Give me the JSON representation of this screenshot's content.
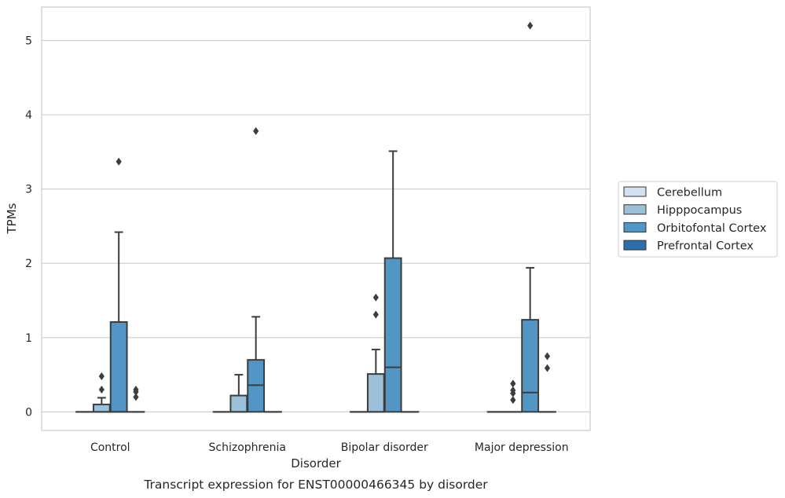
{
  "chart_data": {
    "type": "box",
    "title": "",
    "caption": "Transcript expression for ENST00000466345 by disorder",
    "xlabel": "Disorder",
    "ylabel": "TPMs",
    "ylim": [
      -0.25,
      5.45
    ],
    "yticks": [
      0,
      1,
      2,
      3,
      4,
      5
    ],
    "grid": "horizontal",
    "legend_position": "right",
    "categories": [
      "Control",
      "Schizophrenia",
      "Bipolar disorder",
      "Major depression"
    ],
    "series": [
      {
        "name": "Cerebellum",
        "color": "#d0e1f2",
        "boxes": [
          {
            "category": "Control",
            "whislo": 0,
            "q1": 0,
            "med": 0,
            "q3": 0,
            "whishi": 0,
            "fliers": []
          },
          {
            "category": "Schizophrenia",
            "whislo": 0,
            "q1": 0,
            "med": 0,
            "q3": 0,
            "whishi": 0,
            "fliers": []
          },
          {
            "category": "Bipolar disorder",
            "whislo": 0,
            "q1": 0,
            "med": 0,
            "q3": 0,
            "whishi": 0,
            "fliers": []
          },
          {
            "category": "Major depression",
            "whislo": 0,
            "q1": 0,
            "med": 0,
            "q3": 0,
            "whishi": 0,
            "fliers": []
          }
        ]
      },
      {
        "name": "Hipppocampus",
        "color": "#9ac0da",
        "boxes": [
          {
            "category": "Control",
            "whislo": 0,
            "q1": 0,
            "med": 0,
            "q3": 0.1,
            "whishi": 0.19,
            "fliers": [
              0.3,
              0.48
            ]
          },
          {
            "category": "Schizophrenia",
            "whislo": 0,
            "q1": 0,
            "med": 0,
            "q3": 0.22,
            "whishi": 0.5,
            "fliers": []
          },
          {
            "category": "Bipolar disorder",
            "whislo": 0,
            "q1": 0,
            "med": 0,
            "q3": 0.51,
            "whishi": 0.84,
            "fliers": [
              1.31,
              1.54
            ]
          },
          {
            "category": "Major depression",
            "whislo": 0,
            "q1": 0,
            "med": 0,
            "q3": 0,
            "whishi": 0,
            "fliers": [
              0.16,
              0.25,
              0.29,
              0.38
            ]
          }
        ]
      },
      {
        "name": "Orbitofontal Cortex",
        "color": "#5296c6",
        "boxes": [
          {
            "category": "Control",
            "whislo": 0,
            "q1": 0,
            "med": 0,
            "q3": 1.21,
            "whishi": 2.42,
            "fliers": [
              3.37
            ]
          },
          {
            "category": "Schizophrenia",
            "whislo": 0,
            "q1": 0,
            "med": 0.36,
            "q3": 0.7,
            "whishi": 1.28,
            "fliers": [
              3.78
            ]
          },
          {
            "category": "Bipolar disorder",
            "whislo": 0,
            "q1": 0,
            "med": 0.6,
            "q3": 2.07,
            "whishi": 3.51,
            "fliers": []
          },
          {
            "category": "Major depression",
            "whislo": 0,
            "q1": 0,
            "med": 0.26,
            "q3": 1.24,
            "whishi": 1.94,
            "fliers": [
              5.2
            ]
          }
        ]
      },
      {
        "name": "Prefrontal Cortex",
        "color": "#2c6fad",
        "boxes": [
          {
            "category": "Control",
            "whislo": 0,
            "q1": 0,
            "med": 0,
            "q3": 0,
            "whishi": 0,
            "fliers": [
              0.2,
              0.27,
              0.3
            ]
          },
          {
            "category": "Schizophrenia",
            "whislo": 0,
            "q1": 0,
            "med": 0,
            "q3": 0,
            "whishi": 0,
            "fliers": []
          },
          {
            "category": "Bipolar disorder",
            "whislo": 0,
            "q1": 0,
            "med": 0,
            "q3": 0,
            "whishi": 0,
            "fliers": []
          },
          {
            "category": "Major depression",
            "whislo": 0,
            "q1": 0,
            "med": 0,
            "q3": 0,
            "whishi": 0,
            "fliers": [
              0.59,
              0.75
            ]
          }
        ]
      }
    ]
  }
}
